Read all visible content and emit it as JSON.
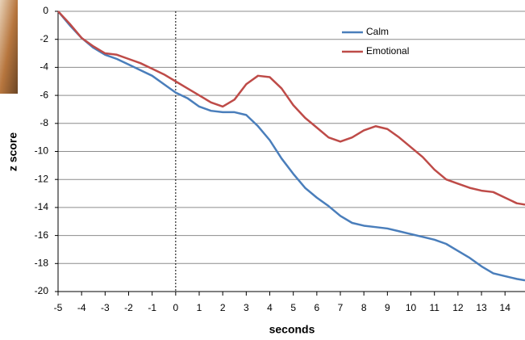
{
  "chart_data": {
    "type": "line",
    "x_label": "seconds",
    "y_label": "z score",
    "x": [
      -5,
      -4.5,
      -4,
      -3.5,
      -3,
      -2.5,
      -2,
      -1.5,
      -1,
      -0.5,
      0,
      0.5,
      1,
      1.5,
      2,
      2.5,
      3,
      3.5,
      4,
      4.5,
      5,
      5.5,
      6,
      6.5,
      7,
      7.5,
      8,
      8.5,
      9,
      9.5,
      10,
      10.5,
      11,
      11.5,
      12,
      12.5,
      13,
      13.5,
      14,
      14.5,
      14.85
    ],
    "series": [
      {
        "name": "Calm",
        "color": "#4a7ebb",
        "values": [
          0,
          -1.0,
          -1.9,
          -2.6,
          -3.1,
          -3.4,
          -3.8,
          -4.2,
          -4.6,
          -5.2,
          -5.8,
          -6.2,
          -6.8,
          -7.1,
          -7.2,
          -7.2,
          -7.4,
          -8.2,
          -9.2,
          -10.5,
          -11.6,
          -12.6,
          -13.3,
          -13.9,
          -14.6,
          -15.1,
          -15.3,
          -15.4,
          -15.5,
          -15.7,
          -15.9,
          -16.1,
          -16.3,
          -16.6,
          -17.1,
          -17.6,
          -18.2,
          -18.7,
          -18.9,
          -19.1,
          -19.2
        ]
      },
      {
        "name": "Emotional",
        "color": "#be4b48",
        "values": [
          0,
          -0.9,
          -1.9,
          -2.5,
          -3.0,
          -3.1,
          -3.4,
          -3.7,
          -4.1,
          -4.5,
          -5.0,
          -5.5,
          -6.0,
          -6.5,
          -6.8,
          -6.3,
          -5.2,
          -4.6,
          -4.7,
          -5.5,
          -6.7,
          -7.6,
          -8.3,
          -9.0,
          -9.3,
          -9.0,
          -8.5,
          -8.2,
          -8.4,
          -9.0,
          -9.7,
          -10.4,
          -11.3,
          -12.0,
          -12.3,
          -12.6,
          -12.8,
          -12.9,
          -13.3,
          -13.7,
          -13.8
        ]
      }
    ],
    "xlim": [
      -5,
      14.85
    ],
    "ylim": [
      -20,
      0
    ],
    "xticks": [
      -5,
      -4,
      -3,
      -2,
      -1,
      0,
      1,
      2,
      3,
      4,
      5,
      6,
      7,
      8,
      9,
      10,
      11,
      12,
      13,
      14
    ],
    "yticks": [
      0,
      -2,
      -4,
      -6,
      -8,
      -10,
      -12,
      -14,
      -16,
      -18,
      -20
    ],
    "reference_line_x": 0,
    "grid": true,
    "legend": "top-right"
  }
}
